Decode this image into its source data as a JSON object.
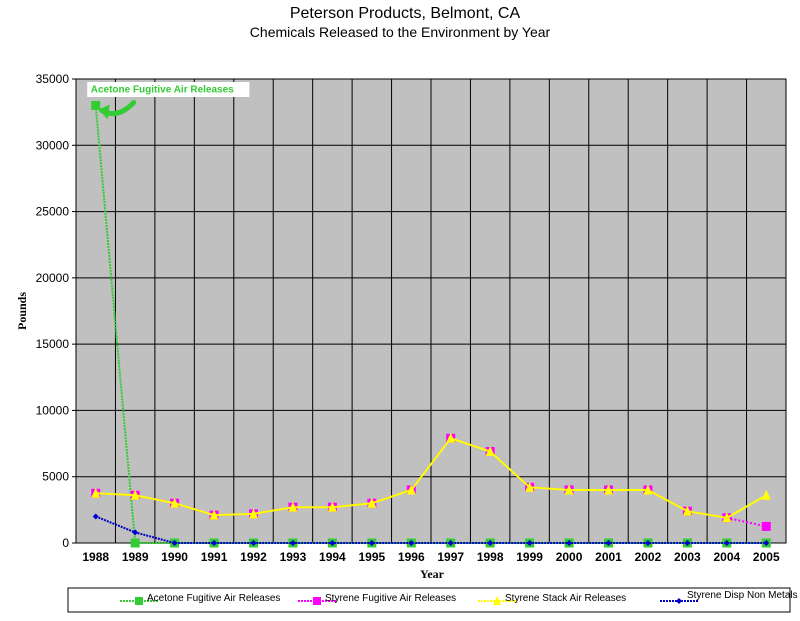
{
  "chart_data": {
    "type": "line",
    "title": "Peterson Products, Belmont, CA",
    "subtitle": "Chemicals Released to the Environment by Year",
    "xlabel": "Year",
    "ylabel": "Pounds",
    "categories": [
      "1988",
      "1989",
      "1990",
      "1991",
      "1992",
      "1993",
      "1994",
      "1995",
      "1996",
      "1997",
      "1998",
      "1999",
      "2000",
      "2001",
      "2002",
      "2003",
      "2004",
      "2005"
    ],
    "ylim": [
      0,
      35000
    ],
    "yticks": [
      0,
      5000,
      10000,
      15000,
      20000,
      25000,
      30000,
      35000
    ],
    "grid": true,
    "legend_position": "bottom",
    "plot_background": "#c0c0c0",
    "series": [
      {
        "name": "Acetone Fugitive Air Releases",
        "color": "#33cc33",
        "marker": "square",
        "values": [
          33000,
          0,
          0,
          0,
          0,
          0,
          0,
          0,
          0,
          0,
          0,
          0,
          0,
          0,
          0,
          0,
          0,
          0
        ]
      },
      {
        "name": "Styrene Fugitive Air Releases",
        "color": "#ff00ff",
        "marker": "square",
        "values": [
          3750,
          3600,
          3000,
          2100,
          2200,
          2700,
          2700,
          3000,
          4000,
          7900,
          6900,
          4200,
          4000,
          4000,
          4000,
          2400,
          1900,
          1250
        ]
      },
      {
        "name": "Styrene Stack Air Releases",
        "color": "#ffff00",
        "marker": "triangle",
        "values": [
          3750,
          3600,
          3000,
          2100,
          2200,
          2700,
          2700,
          3000,
          4000,
          7900,
          6900,
          4200,
          4000,
          4000,
          4000,
          2400,
          1900,
          3600
        ]
      },
      {
        "name": "Styrene Disp Non Metals",
        "color": "#0000cc",
        "marker": "diamond",
        "values": [
          2000,
          800,
          0,
          0,
          0,
          0,
          0,
          0,
          0,
          0,
          0,
          0,
          0,
          0,
          0,
          0,
          0,
          0
        ]
      }
    ],
    "annotations": [
      {
        "text": "Acetone Fugitive Air Releases",
        "series": "Acetone Fugitive Air Releases",
        "category": "1988",
        "value": 33000,
        "color": "#33cc33"
      }
    ]
  }
}
